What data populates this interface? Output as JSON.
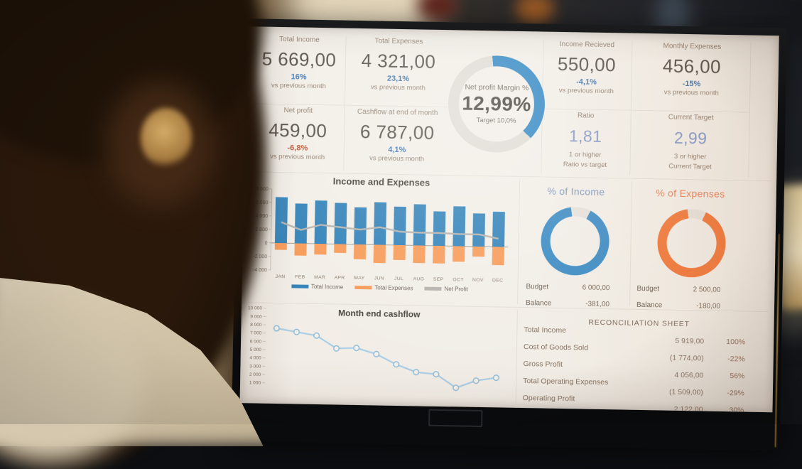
{
  "dashboard": {
    "kpi": {
      "total_income": {
        "label": "Total Income",
        "value": "5 669,00",
        "delta": "16%",
        "delta_color": "#3b74ae",
        "sub": "vs previous month"
      },
      "total_expenses": {
        "label": "Total Expenses",
        "value": "4 321,00",
        "delta": "23,1%",
        "delta_color": "#3b74ae",
        "sub": "vs previous month"
      },
      "net_profit": {
        "label": "Net profit",
        "value": "459,00",
        "delta": "-6,8%",
        "delta_color": "#b4532e",
        "sub": "vs previous month"
      },
      "cashflow_end_of_month": {
        "label": "Cashflow at end of month",
        "value": "6 787,00",
        "delta": "4,1%",
        "delta_color": "#3b74ae",
        "sub": "vs previous month"
      },
      "income_recieved": {
        "label": "Income Recieved",
        "value": "550,00",
        "delta": "-4,1%",
        "delta_color": "#3b74ae",
        "sub": "vs previous month"
      },
      "monthly_expenses": {
        "label": "Monthly Expenses",
        "value": "456,00",
        "delta": "-15%",
        "delta_color": "#3b74ae",
        "sub": "vs previous month"
      },
      "ratio": {
        "label": "Ratio",
        "value": "1,81",
        "value_color": "#8096c4",
        "sub1": "1 or higher",
        "sub2": "Ratio vs target"
      },
      "current_target": {
        "label": "Current Target",
        "value": "2,99",
        "value_color": "#8096c4",
        "sub1": "3 or higher",
        "sub2": "Current Target"
      }
    },
    "gauge": {
      "label": "Net profit Margin %",
      "value": "12,99%",
      "target": "Target 10,0%",
      "color": "#2f86c2",
      "track_color": "#dfdbd4",
      "arc_start_deg": -6,
      "arc_sweep_deg": 140
    },
    "budget_income": {
      "title": "% of Income",
      "title_color": "#7b94bb",
      "color": "#3a8bc4",
      "track_color": "#e6e2db",
      "arc_start_deg": 26,
      "arc_sweep_deg": 326,
      "rows": [
        {
          "label": "Budget",
          "value": "6 000,00"
        },
        {
          "label": "Balance",
          "value": "-381,00"
        }
      ]
    },
    "budget_expenses": {
      "title": "% of Expenses",
      "title_color": "#e8805a",
      "color": "#f07a3d",
      "track_color": "#e6e2db",
      "arc_start_deg": 24,
      "arc_sweep_deg": 328,
      "rows": [
        {
          "label": "Budget",
          "value": "2 500,00"
        },
        {
          "label": "Balance",
          "value": "-180,00"
        }
      ]
    },
    "reconciliation": {
      "title": "RECONCILIATION SHEET",
      "rows": [
        {
          "label": "Total Income",
          "value": "5 919,00",
          "pct": "100%"
        },
        {
          "label": "Cost of Goods Sold",
          "value": "(1 774,00)",
          "pct": "-22%"
        },
        {
          "label": "Gross Profit",
          "value": "4 056,00",
          "pct": "56%"
        },
        {
          "label": "Total Operating Expenses",
          "value": "(1 509,00)",
          "pct": "-29%"
        },
        {
          "label": "Operating Profit",
          "value": "2 122,00",
          "pct": "30%"
        }
      ]
    }
  },
  "chart_data": [
    {
      "id": "income-and-expenses",
      "type": "bar",
      "title": "Income and Expenses",
      "categories": [
        "JAN",
        "FEB",
        "MAR",
        "APR",
        "MAY",
        "JUN",
        "JUL",
        "AUG",
        "SEP",
        "OCT",
        "NOV",
        "DEC"
      ],
      "series": [
        {
          "name": "Total Income",
          "kind": "bar",
          "color": "#3081b8",
          "values": [
            6800,
            5900,
            6400,
            6100,
            5500,
            6300,
            5700,
            6100,
            5100,
            5900,
            4900,
            5200
          ]
        },
        {
          "name": "Total Expenses",
          "kind": "bar",
          "color": "#f79a57",
          "values": [
            -1000,
            -1800,
            -1600,
            -1300,
            -2200,
            -2700,
            -2200,
            -2600,
            -2600,
            -2300,
            -1500,
            -2700
          ]
        },
        {
          "name": "Net Profit",
          "kind": "line",
          "color": "#b5b2ad",
          "values": [
            3100,
            2000,
            2800,
            2500,
            2200,
            2600,
            2000,
            1900,
            1900,
            1800,
            1800,
            1200
          ]
        }
      ],
      "ylim": [
        -4000,
        8000
      ],
      "yticks": [
        {
          "value": 8000,
          "label": "8 000"
        },
        {
          "value": 6000,
          "label": "6 000"
        },
        {
          "value": 4000,
          "label": "4 000"
        },
        {
          "value": 2000,
          "label": "2 000"
        },
        {
          "value": 0,
          "label": "0"
        },
        {
          "value": -2000,
          "label": "-2 000"
        },
        {
          "value": -4000,
          "label": "-4 000"
        }
      ],
      "grid": false,
      "legend_position": "bottom"
    },
    {
      "id": "month-end-cashflow",
      "type": "line",
      "title": "Month end cashflow",
      "values": [
        7600,
        7200,
        6800,
        5300,
        5400,
        4700,
        3500,
        2600,
        2400,
        800,
        1700,
        2100
      ],
      "line_color": "#a9cee6",
      "marker_stroke": "#92bcd8",
      "ylim": [
        0,
        10000
      ],
      "yticks": [
        {
          "value": 10000,
          "label": "10 000"
        },
        {
          "value": 9000,
          "label": "9 000"
        },
        {
          "value": 8000,
          "label": "8 000"
        },
        {
          "value": 7000,
          "label": "7 000"
        },
        {
          "value": 6000,
          "label": "6 000"
        },
        {
          "value": 5000,
          "label": "5 000"
        },
        {
          "value": 4000,
          "label": "4 000"
        },
        {
          "value": 3000,
          "label": "3 000"
        },
        {
          "value": 2000,
          "label": "2 000"
        },
        {
          "value": 1000,
          "label": "1 000"
        }
      ],
      "x_labels_hidden": true
    }
  ]
}
